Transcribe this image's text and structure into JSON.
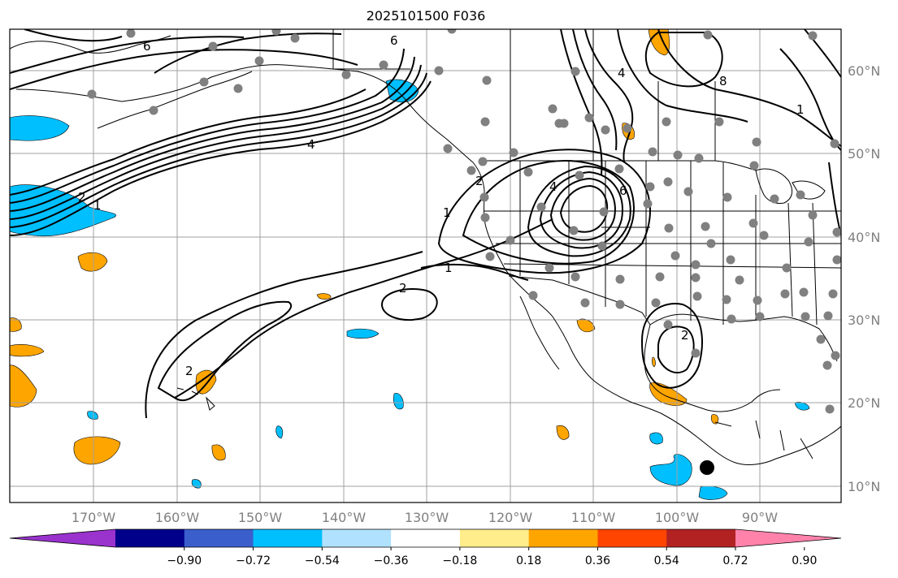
{
  "title": "2025101500 F036",
  "map": {
    "lon_labels": [
      "170°W",
      "160°W",
      "150°W",
      "140°W",
      "130°W",
      "120°W",
      "110°W",
      "100°W",
      "90°W"
    ],
    "lat_labels": [
      "60°N",
      "50°N",
      "40°N",
      "30°N",
      "20°N",
      "10°N"
    ],
    "grid_color": "#a0a0a0",
    "contour_labels": [
      "4",
      "6",
      "2",
      "1",
      "1",
      "2",
      "2",
      "4",
      "6",
      "1",
      "2",
      "1",
      "2",
      "6",
      "4",
      "8"
    ]
  },
  "colorbar": {
    "ticks": [
      "−0.90",
      "−0.72",
      "−0.54",
      "−0.36",
      "−0.18",
      "0.18",
      "0.36",
      "0.54",
      "0.72",
      "0.90"
    ],
    "colors": [
      "#9a32cd",
      "#00008b",
      "#3a5fcd",
      "#00bfff",
      "#b0e2ff",
      "#ffffff",
      "#ffec8b",
      "#ffa500",
      "#ff4500",
      "#b22222",
      "#ff82ab"
    ]
  }
}
